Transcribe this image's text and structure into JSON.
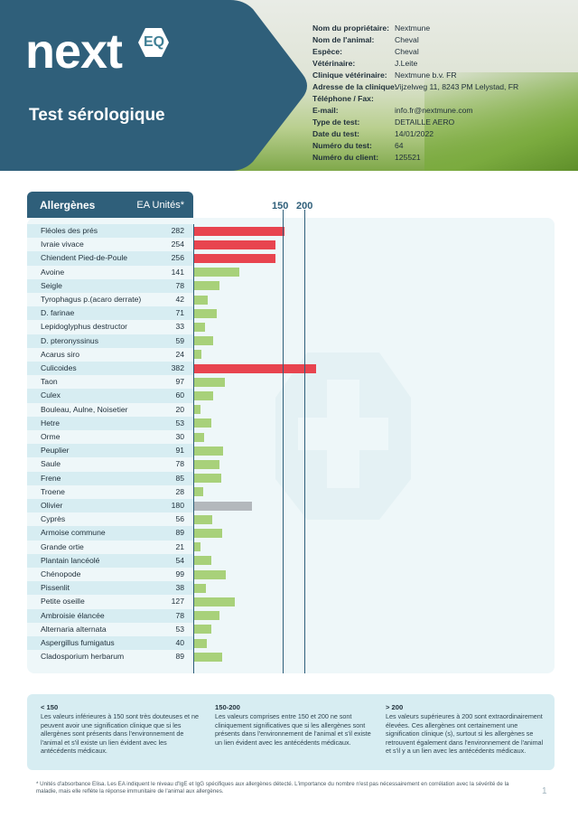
{
  "header": {
    "logo_text": "next",
    "logo_badge": "EQ",
    "title": "Test sérologique",
    "colors": {
      "brand_blue": "#2f5f7a"
    }
  },
  "info": [
    {
      "label": "Nom du propriétaire:",
      "value": "Nextmune"
    },
    {
      "label": "Nom de l'animal:",
      "value": "Cheval"
    },
    {
      "label": "Espèce:",
      "value": "Cheval"
    },
    {
      "label": "Vétérinaire:",
      "value": "J.Leite"
    },
    {
      "label": "Clinique vétérinaire:",
      "value": "Nextmune b.v. FR"
    },
    {
      "label": "Adresse de la clinique:",
      "value": "Vijzelweg 11, 8243 PM Lelystad, FR"
    },
    {
      "label": "Téléphone / Fax:",
      "value": ""
    },
    {
      "label": "E-mail:",
      "value": "info.fr@nextmune.com"
    },
    {
      "label": "Type de test:",
      "value": "DETAILLE AERO"
    },
    {
      "label": "Date du test:",
      "value": "14/01/2022"
    },
    {
      "label": "Numéro du test:",
      "value": "64"
    },
    {
      "label": "Numéro du client:",
      "value": "125521"
    }
  ],
  "table": {
    "header_left": "Allergènes",
    "header_right": "EA Unités*"
  },
  "chart_data": {
    "type": "bar",
    "orientation": "horizontal",
    "thresholds": [
      150,
      200
    ],
    "threshold_labels": [
      "150",
      "200"
    ],
    "colors": {
      "low": "#a8d17a",
      "medium": "#b3b8bc",
      "high": "#e8444f"
    },
    "categories": [
      "Fléoles des prés",
      "Ivraie vivace",
      "Chiendent Pied-de-Poule",
      "Avoine",
      "Seigle",
      "Tyrophagus p.(acaro derrate)",
      "D. farinae",
      "Lepidoglyphus destructor",
      "D. pteronyssinus",
      "Acarus siro",
      "Culicoides",
      "Taon",
      "Culex",
      "Bouleau, Aulne, Noisetier",
      "Hetre",
      "Orme",
      "Peuplier",
      "Saule",
      "Frene",
      "Troene",
      "Olivier",
      "Cyprès",
      "Armoise commune",
      "Grande ortie",
      "Plantain lancéolé",
      "Chénopode",
      "Pissenlit",
      "Petite oseille",
      "Ambroisie élancée",
      "Alternaria alternata",
      "Aspergillus fumigatus",
      "Cladosporium herbarum"
    ],
    "values": [
      282,
      254,
      256,
      141,
      78,
      42,
      71,
      33,
      59,
      24,
      382,
      97,
      60,
      20,
      53,
      30,
      91,
      78,
      85,
      28,
      180,
      56,
      89,
      21,
      54,
      99,
      38,
      127,
      78,
      53,
      40,
      89
    ]
  },
  "legend": [
    {
      "title": "< 150",
      "text": "Les valeurs inférieures à 150 sont très douteuses et ne peuvent avoir une signification clinique que si les allergènes sont présents dans l'environnement de l'animal et s'il existe un lien évident avec les antécédents médicaux."
    },
    {
      "title": "150-200",
      "text": "Les valeurs comprises entre 150 et 200 ne sont cliniquement significatives que si les allergènes sont présents dans l'environnement de l'animal et s'il existe un lien évident avec les antécédents médicaux."
    },
    {
      "title": "> 200",
      "text": "Les valeurs supérieures à 200 sont extraordinairement élevées. Ces allergènes ont certainement une signification clinique (s), surtout si les allergènes se retrouvent également dans l'environnement de l'animal et s'il y a un lien avec les antécédents médicaux."
    }
  ],
  "footnote": "* Unités d'absorbance Elisa. Les EA indiquent le niveau d'IgE et IgG spécifiques aux allergènes détecté. L'importance du nombre n'est pas nécessairement en corrélation avec la sévérité de la maladie, mais elle reflète la réponse immunitaire de l'animal aux allergènes.",
  "page_number": "1"
}
